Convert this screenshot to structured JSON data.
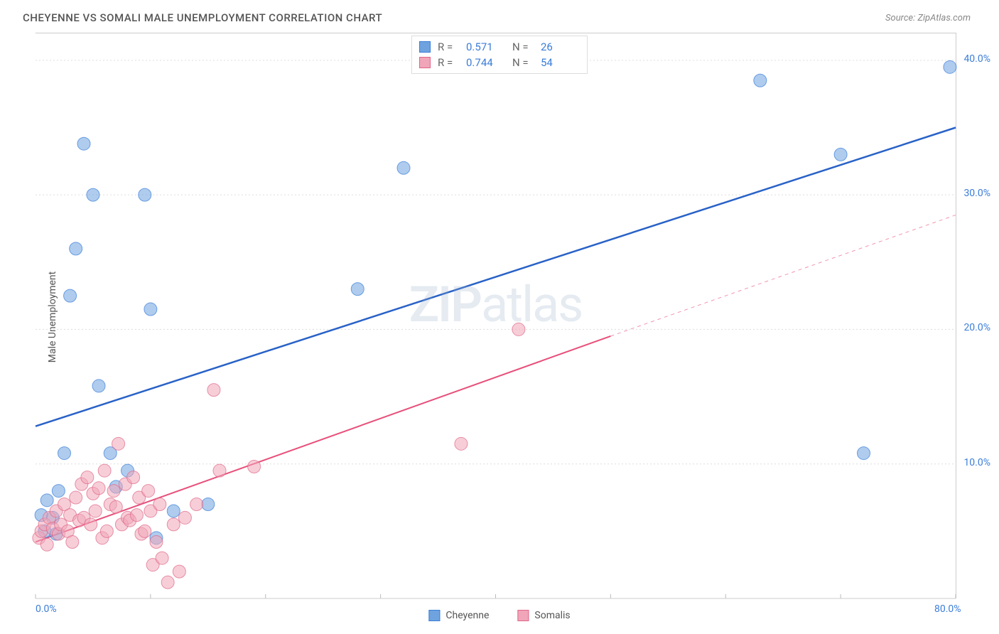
{
  "header": {
    "title": "CHEYENNE VS SOMALI MALE UNEMPLOYMENT CORRELATION CHART",
    "source_prefix": "Source: ",
    "source_name": "ZipAtlas.com"
  },
  "watermark": {
    "part1": "ZIP",
    "part2": "atlas"
  },
  "chart": {
    "type": "scatter",
    "y_label": "Male Unemployment",
    "background_color": "#ffffff",
    "grid_color": "#dddddd",
    "border_color": "#cccccc",
    "x_range": [
      0,
      80
    ],
    "y_range": [
      0,
      42
    ],
    "x_ticks": [
      0,
      10,
      20,
      30,
      40,
      50,
      60,
      70,
      80
    ],
    "x_tick_labels": {
      "0": "0.0%",
      "80": "80.0%"
    },
    "y_ticks": [
      10,
      20,
      30,
      40
    ],
    "y_tick_labels": {
      "10": "10.0%",
      "20": "20.0%",
      "30": "30.0%",
      "40": "40.0%"
    },
    "marker_radius": 9,
    "marker_opacity": 0.55,
    "series": [
      {
        "name": "Cheyenne",
        "color": "#6ea3e0",
        "stroke": "#3b7dd8",
        "line_color": "#2962c7",
        "line_width": 2.5,
        "trend": {
          "x1": 0,
          "y1": 12.8,
          "x2": 80,
          "y2": 35
        },
        "dashed_extent": null,
        "r_value": "0.571",
        "n_value": "26",
        "points": [
          [
            0.5,
            6.2
          ],
          [
            0.8,
            5.0
          ],
          [
            1.0,
            7.3
          ],
          [
            1.5,
            6.0
          ],
          [
            2.0,
            8.0
          ],
          [
            1.8,
            4.8
          ],
          [
            2.5,
            10.8
          ],
          [
            3.0,
            22.5
          ],
          [
            3.5,
            26.0
          ],
          [
            4.2,
            33.8
          ],
          [
            5.0,
            30.0
          ],
          [
            5.5,
            15.8
          ],
          [
            6.5,
            10.8
          ],
          [
            7.0,
            8.3
          ],
          [
            8.0,
            9.5
          ],
          [
            9.5,
            30.0
          ],
          [
            10.0,
            21.5
          ],
          [
            10.5,
            4.5
          ],
          [
            12.0,
            6.5
          ],
          [
            15.0,
            7.0
          ],
          [
            28.0,
            23.0
          ],
          [
            32.0,
            32.0
          ],
          [
            63.0,
            38.5
          ],
          [
            70.0,
            33.0
          ],
          [
            72.0,
            10.8
          ],
          [
            79.5,
            39.5
          ]
        ]
      },
      {
        "name": "Somalis",
        "color": "#f0a5b8",
        "stroke": "#e06688",
        "line_color": "#e84f7a",
        "line_width": 2,
        "trend": {
          "x1": 0,
          "y1": 4.2,
          "x2": 50,
          "y2": 19.5
        },
        "dashed_extent": {
          "x1": 50,
          "y1": 19.5,
          "x2": 80,
          "y2": 28.5
        },
        "r_value": "0.744",
        "n_value": "54",
        "points": [
          [
            0.3,
            4.5
          ],
          [
            0.5,
            5.0
          ],
          [
            0.8,
            5.5
          ],
          [
            1.0,
            4.0
          ],
          [
            1.2,
            6.0
          ],
          [
            1.5,
            5.2
          ],
          [
            1.8,
            6.5
          ],
          [
            2.0,
            4.8
          ],
          [
            2.2,
            5.5
          ],
          [
            2.5,
            7.0
          ],
          [
            2.8,
            5.0
          ],
          [
            3.0,
            6.2
          ],
          [
            3.2,
            4.2
          ],
          [
            3.5,
            7.5
          ],
          [
            3.8,
            5.8
          ],
          [
            4.0,
            8.5
          ],
          [
            4.2,
            6.0
          ],
          [
            4.5,
            9.0
          ],
          [
            4.8,
            5.5
          ],
          [
            5.0,
            7.8
          ],
          [
            5.2,
            6.5
          ],
          [
            5.5,
            8.2
          ],
          [
            5.8,
            4.5
          ],
          [
            6.0,
            9.5
          ],
          [
            6.2,
            5.0
          ],
          [
            6.5,
            7.0
          ],
          [
            6.8,
            8.0
          ],
          [
            7.0,
            6.8
          ],
          [
            7.2,
            11.5
          ],
          [
            7.5,
            5.5
          ],
          [
            7.8,
            8.5
          ],
          [
            8.0,
            6.0
          ],
          [
            8.2,
            5.8
          ],
          [
            8.5,
            9.0
          ],
          [
            8.8,
            6.2
          ],
          [
            9.0,
            7.5
          ],
          [
            9.2,
            4.8
          ],
          [
            9.5,
            5.0
          ],
          [
            9.8,
            8.0
          ],
          [
            10.0,
            6.5
          ],
          [
            10.2,
            2.5
          ],
          [
            10.5,
            4.2
          ],
          [
            10.8,
            7.0
          ],
          [
            11.0,
            3.0
          ],
          [
            11.5,
            1.2
          ],
          [
            12.0,
            5.5
          ],
          [
            12.5,
            2.0
          ],
          [
            13.0,
            6.0
          ],
          [
            14.0,
            7.0
          ],
          [
            15.5,
            15.5
          ],
          [
            16.0,
            9.5
          ],
          [
            19.0,
            9.8
          ],
          [
            37.0,
            11.5
          ],
          [
            42.0,
            20.0
          ]
        ]
      }
    ],
    "legend_labels": {
      "r_prefix": "R =",
      "n_prefix": "N ="
    }
  }
}
